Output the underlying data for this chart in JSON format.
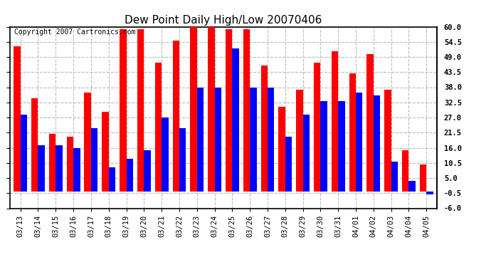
{
  "title": "Dew Point Daily High/Low 20070406",
  "copyright": "Copyright 2007 Cartronics.com",
  "dates": [
    "03/13",
    "03/14",
    "03/15",
    "03/16",
    "03/17",
    "03/18",
    "03/19",
    "03/20",
    "03/21",
    "03/22",
    "03/23",
    "03/24",
    "03/25",
    "03/26",
    "03/27",
    "03/28",
    "03/29",
    "03/30",
    "03/31",
    "04/01",
    "04/02",
    "04/03",
    "04/04",
    "04/05"
  ],
  "highs": [
    53,
    34,
    21,
    20,
    36,
    29,
    59,
    59,
    47,
    55,
    61,
    61,
    59,
    59,
    46,
    31,
    37,
    47,
    51,
    43,
    50,
    37,
    15,
    10
  ],
  "lows": [
    28,
    17,
    17,
    16,
    23,
    9,
    12,
    15,
    27,
    23,
    38,
    38,
    52,
    38,
    38,
    20,
    28,
    33,
    33,
    36,
    35,
    11,
    4,
    -1
  ],
  "high_color": "#ff0000",
  "low_color": "#0000ff",
  "bg_color": "#ffffff",
  "plot_bg_color": "#ffffff",
  "grid_color": "#bbbbbb",
  "ylim": [
    -6.0,
    60.0
  ],
  "yticks": [
    -6.0,
    -0.5,
    5.0,
    10.5,
    16.0,
    21.5,
    27.0,
    32.5,
    38.0,
    43.5,
    49.0,
    54.5,
    60.0
  ],
  "bar_width": 0.38,
  "title_fontsize": 11,
  "tick_fontsize": 7.5,
  "copyright_fontsize": 7,
  "figsize": [
    6.9,
    3.75
  ],
  "dpi": 100
}
